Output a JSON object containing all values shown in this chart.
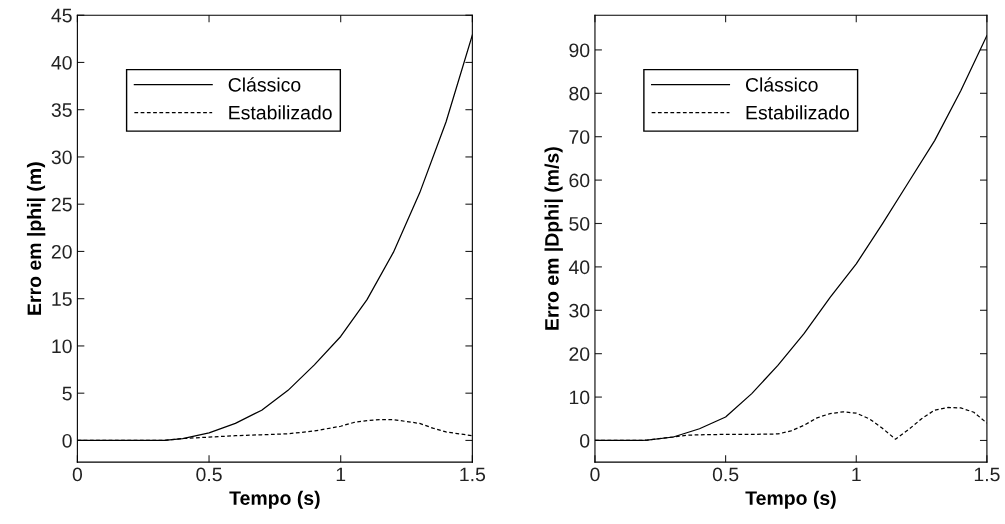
{
  "chart_data": [
    {
      "type": "line",
      "xlabel": "Tempo (s)",
      "ylabel": "Erro em |phi| (m)",
      "xlim": [
        0,
        1.5
      ],
      "ylim": [
        -2.3,
        45
      ],
      "xticks": [
        0,
        0.5,
        1,
        1.5
      ],
      "yticks": [
        0,
        5,
        10,
        15,
        20,
        25,
        30,
        35,
        40,
        45
      ],
      "legend": "top left",
      "grid": false,
      "series": [
        {
          "name": "Clássico",
          "color": "#000000",
          "line_style": "solid",
          "x": [
            0,
            0.33,
            0.4,
            0.5,
            0.6,
            0.7,
            0.8,
            0.9,
            1.0,
            1.1,
            1.2,
            1.3,
            1.4,
            1.5
          ],
          "values": [
            0,
            0,
            0.2,
            0.8,
            1.8,
            3.2,
            5.3,
            8,
            11,
            14.9,
            19.9,
            26.2,
            33.7,
            42.9
          ]
        },
        {
          "name": "Estabilizado",
          "color": "#000000",
          "line_style": "dashed",
          "x": [
            0,
            0.33,
            0.4,
            0.5,
            0.6,
            0.7,
            0.8,
            0.9,
            1.0,
            1.05,
            1.1,
            1.15,
            1.2,
            1.3,
            1.35,
            1.4,
            1.5
          ],
          "values": [
            0,
            0,
            0.2,
            0.35,
            0.5,
            0.6,
            0.7,
            1.0,
            1.5,
            1.9,
            2.1,
            2.2,
            2.2,
            1.8,
            1.3,
            0.9,
            0.5
          ]
        }
      ]
    },
    {
      "type": "line",
      "xlabel": "Tempo (s)",
      "ylabel": "Erro em |Dphi| (m/s)",
      "xlim": [
        0,
        1.5
      ],
      "ylim": [
        -5,
        98
      ],
      "xticks": [
        0,
        0.5,
        1,
        1.5
      ],
      "yticks": [
        0,
        10,
        20,
        30,
        40,
        50,
        60,
        70,
        80,
        90
      ],
      "legend": "top left",
      "grid": false,
      "series": [
        {
          "name": "Clássico",
          "color": "#000000",
          "line_style": "solid",
          "x": [
            0,
            0.18,
            0.2,
            0.3,
            0.4,
            0.5,
            0.6,
            0.7,
            0.8,
            0.9,
            1.0,
            1.1,
            1.2,
            1.3,
            1.4,
            1.5
          ],
          "values": [
            0,
            0,
            0.1,
            0.8,
            2.7,
            5.4,
            10.8,
            17.3,
            24.6,
            33,
            40.7,
            49.9,
            59.5,
            69.1,
            80.6,
            93.3
          ]
        },
        {
          "name": "Estabilizado",
          "color": "#000000",
          "line_style": "dashed",
          "x": [
            0,
            0.18,
            0.2,
            0.3,
            0.35,
            0.4,
            0.5,
            0.6,
            0.7,
            0.75,
            0.8,
            0.85,
            0.9,
            0.95,
            1.0,
            1.05,
            1.1,
            1.15,
            1.2,
            1.25,
            1.3,
            1.35,
            1.4,
            1.45,
            1.5
          ],
          "values": [
            0,
            0,
            0.1,
            0.8,
            1.2,
            1.3,
            1.4,
            1.4,
            1.5,
            2.2,
            3.5,
            5.2,
            6.2,
            6.6,
            6.3,
            5.0,
            2.8,
            0.3,
            2.5,
            5.0,
            7.0,
            7.6,
            7.5,
            6.5,
            4.0
          ]
        }
      ]
    }
  ]
}
